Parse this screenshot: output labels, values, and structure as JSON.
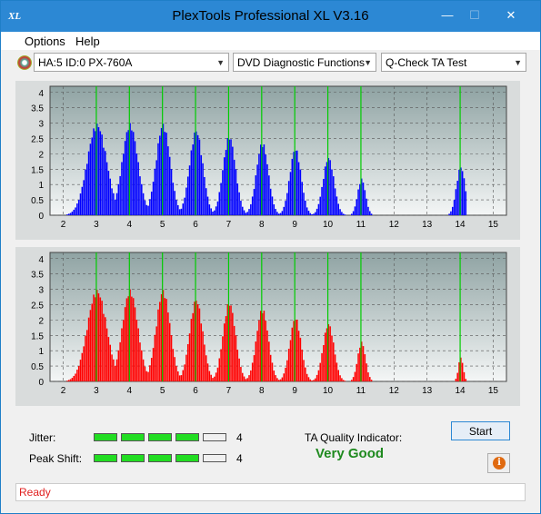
{
  "window": {
    "title": "PlexTools Professional XL V3.16",
    "app_icon_text": "XL"
  },
  "menu": {
    "items": [
      "Options",
      "Help"
    ]
  },
  "toolbar": {
    "drive": "HA:5 ID:0  PX-760A",
    "function": "DVD Diagnostic Functions",
    "test": "Q-Check TA Test"
  },
  "colors": {
    "top_series": "#0000ff",
    "bottom_series": "#ff0000",
    "marker_lines": "#00cc00",
    "quality": "#1f8a1f",
    "status": "#e02020"
  },
  "chart_data": [
    {
      "type": "bar",
      "name_hint": "top",
      "y_ticks": [
        "4",
        "3.5",
        "3",
        "2.5",
        "2",
        "1.5",
        "1",
        "0.5",
        "0"
      ],
      "x_ticks": [
        "2",
        "3",
        "4",
        "5",
        "6",
        "7",
        "8",
        "9",
        "10",
        "11",
        "12",
        "13",
        "14",
        "15"
      ],
      "ylim": [
        0,
        4.2
      ],
      "xlim": [
        1.6,
        15.4
      ],
      "markers": [
        3,
        4,
        5,
        6,
        7,
        8,
        9,
        10,
        11,
        14
      ],
      "peaks": [
        {
          "center": 3.0,
          "height": 3.0,
          "width": 0.62
        },
        {
          "center": 4.0,
          "height": 3.0,
          "width": 0.5
        },
        {
          "center": 5.0,
          "height": 3.0,
          "width": 0.45
        },
        {
          "center": 6.0,
          "height": 2.8,
          "width": 0.42
        },
        {
          "center": 7.0,
          "height": 2.6,
          "width": 0.4
        },
        {
          "center": 8.0,
          "height": 2.4,
          "width": 0.38
        },
        {
          "center": 9.0,
          "height": 2.2,
          "width": 0.36
        },
        {
          "center": 10.0,
          "height": 1.9,
          "width": 0.35
        },
        {
          "center": 11.0,
          "height": 1.2,
          "width": 0.25
        },
        {
          "center": 14.0,
          "height": 1.6,
          "width": 0.28
        }
      ],
      "range": [
        2.1,
        14.2
      ]
    },
    {
      "type": "bar",
      "name_hint": "bottom",
      "y_ticks": [
        "4",
        "3.5",
        "3",
        "2.5",
        "2",
        "1.5",
        "1",
        "0.5",
        "0"
      ],
      "x_ticks": [
        "2",
        "3",
        "4",
        "5",
        "6",
        "7",
        "8",
        "9",
        "10",
        "11",
        "12",
        "13",
        "14",
        "15"
      ],
      "ylim": [
        0,
        4.2
      ],
      "xlim": [
        1.6,
        15.4
      ],
      "markers": [
        3,
        4,
        5,
        6,
        7,
        8,
        9,
        10,
        11,
        14
      ],
      "peaks": [
        {
          "center": 3.0,
          "height": 3.0,
          "width": 0.62
        },
        {
          "center": 4.0,
          "height": 3.0,
          "width": 0.5
        },
        {
          "center": 5.0,
          "height": 3.0,
          "width": 0.45
        },
        {
          "center": 6.0,
          "height": 2.7,
          "width": 0.42
        },
        {
          "center": 7.0,
          "height": 2.6,
          "width": 0.4
        },
        {
          "center": 8.0,
          "height": 2.4,
          "width": 0.38
        },
        {
          "center": 9.0,
          "height": 2.1,
          "width": 0.36
        },
        {
          "center": 10.0,
          "height": 1.9,
          "width": 0.35
        },
        {
          "center": 11.0,
          "height": 1.3,
          "width": 0.25
        },
        {
          "center": 14.0,
          "height": 0.8,
          "width": 0.15
        }
      ],
      "range": [
        2.1,
        14.3
      ]
    }
  ],
  "metrics": {
    "jitter": {
      "label": "Jitter:",
      "filled": 4,
      "total": 5,
      "value": "4"
    },
    "peak_shift": {
      "label": "Peak Shift:",
      "filled": 4,
      "total": 5,
      "value": "4"
    }
  },
  "ta_quality": {
    "label": "TA Quality Indicator:",
    "value": "Very Good"
  },
  "buttons": {
    "start": "Start",
    "info": "i"
  },
  "status": "Ready"
}
